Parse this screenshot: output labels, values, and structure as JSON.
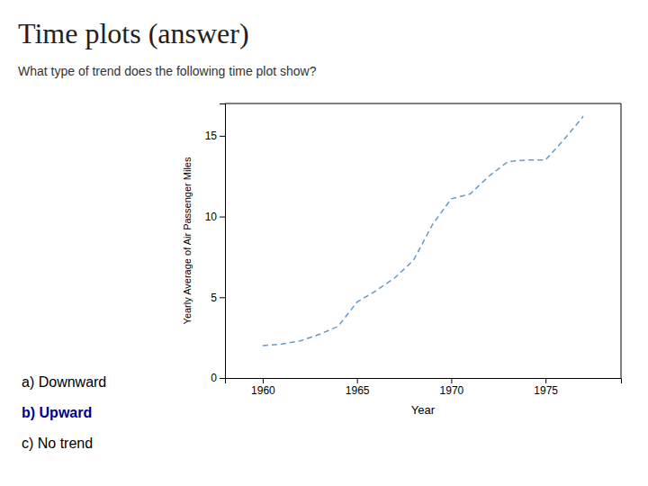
{
  "chart_data": {
    "type": "line",
    "title": "Time plots (answer)",
    "subtitle": "What type of trend does the following time plot show?",
    "xlabel": "Year",
    "ylabel": "Yearly Average of Air Passenger Miles",
    "x": [
      1960,
      1961,
      1962,
      1963,
      1964,
      1965,
      1966,
      1967,
      1968,
      1969,
      1970,
      1971,
      1972,
      1973,
      1974,
      1975,
      1976,
      1977
    ],
    "values": [
      2.0,
      2.1,
      2.3,
      2.7,
      3.2,
      4.7,
      5.4,
      6.2,
      7.3,
      9.5,
      11.1,
      11.4,
      12.5,
      13.4,
      13.5,
      13.5,
      14.8,
      16.2
    ],
    "color": "#6699CC",
    "line_style": "dashed",
    "xlim": [
      1958,
      1979
    ],
    "ylim": [
      0,
      17
    ],
    "xticks": [
      1960,
      1965,
      1970,
      1975
    ],
    "yticks": [
      0,
      5,
      10,
      15
    ],
    "annotations": [
      {
        "text": "a) Downward"
      },
      {
        "text": "b) Upward",
        "color": "#00008B"
      },
      {
        "text": "c) No trend"
      }
    ]
  }
}
